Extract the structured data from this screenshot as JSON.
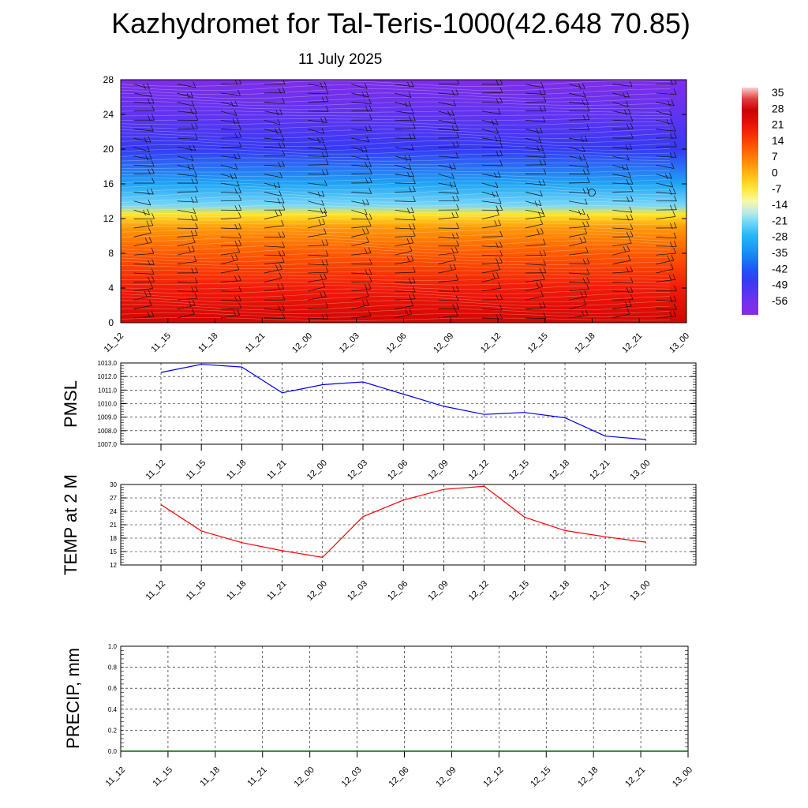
{
  "header": {
    "title": "Kazhydromet for Tal-Teris-1000(42.648 70.85)",
    "subtitle": "11 July 2025"
  },
  "colors": {
    "pmsl_line": "#0000ff",
    "temp_line": "#ff0000",
    "precip_line": "#006400",
    "grid": "#000000",
    "colorbar_top": "#f8d0d0",
    "colorbar_bottom": "#8a2be2"
  },
  "time_labels": [
    "11_12",
    "11_15",
    "11_18",
    "11_21",
    "12_00",
    "12_03",
    "12_06",
    "12_09",
    "12_12",
    "12_15",
    "12_18",
    "12_21",
    "13_00"
  ],
  "chart_data": [
    {
      "type": "heatmap",
      "ylim": [
        0,
        28
      ],
      "yticks": [
        "0",
        "4",
        "8",
        "12",
        "16",
        "20",
        "24",
        "28"
      ],
      "colorbar_labels": [
        "35",
        "28",
        "21",
        "14",
        "7",
        "0",
        "-7",
        "-14",
        "-21",
        "-28",
        "-35",
        "-42",
        "-49",
        "-56"
      ],
      "colorbar_range": [
        -63,
        42
      ],
      "vertical_temperature_profile": [
        {
          "level": 0,
          "value": 30
        },
        {
          "level": 4,
          "value": 23
        },
        {
          "level": 8,
          "value": 14
        },
        {
          "level": 11,
          "value": 6
        },
        {
          "level": 12.5,
          "value": -4
        },
        {
          "level": 13.5,
          "value": -20
        },
        {
          "level": 16,
          "value": -30
        },
        {
          "level": 20,
          "value": -47
        },
        {
          "level": 24,
          "value": -54
        },
        {
          "level": 28,
          "value": -60
        }
      ],
      "wind_barbs": "present"
    },
    {
      "type": "line",
      "ylabel": "PMSL",
      "ylim": [
        1007.0,
        1013.0
      ],
      "yticks": [
        "1013.0",
        "1012.0",
        "1011.0",
        "1010.0",
        "1009.0",
        "1008.0",
        "1007.0"
      ],
      "series": [
        {
          "values": [
            1012.3,
            1012.9,
            1012.7,
            1010.8,
            1011.4,
            1011.6,
            1010.7,
            1009.8,
            1009.2,
            1009.35,
            1008.95,
            1007.6,
            1007.35
          ]
        }
      ],
      "grid": true
    },
    {
      "type": "line",
      "ylabel": "TEMP at 2 M",
      "ylim": [
        12,
        30
      ],
      "yticks": [
        "30",
        "27",
        "24",
        "21",
        "18",
        "15",
        "12"
      ],
      "series": [
        {
          "values": [
            25.5,
            19.6,
            17.0,
            15.2,
            13.7,
            22.8,
            26.5,
            28.9,
            29.6,
            22.7,
            19.7,
            18.3,
            17.1
          ]
        }
      ],
      "grid": true
    },
    {
      "type": "line",
      "ylabel": "PRECIP, mm",
      "ylim": [
        0.0,
        1.0
      ],
      "yticks": [
        "1.0",
        "0.8",
        "0.6",
        "0.4",
        "0.2",
        "0.0"
      ],
      "series": [
        {
          "values": [
            0,
            0,
            0,
            0,
            0,
            0,
            0,
            0,
            0,
            0,
            0,
            0,
            0
          ]
        }
      ],
      "grid": true
    }
  ]
}
